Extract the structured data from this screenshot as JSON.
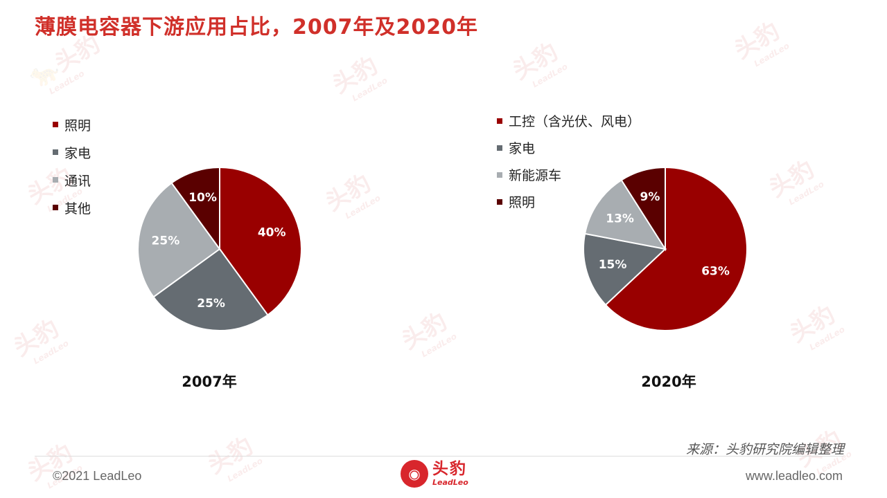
{
  "title": "薄膜电容器下游应用占比，2007年及2020年",
  "watermark": {
    "cn": "头豹",
    "en": "LeadLeo"
  },
  "chart_data": [
    {
      "type": "pie",
      "caption": "2007年",
      "categories": [
        "照明",
        "家电",
        "通讯",
        "其他"
      ],
      "values": [
        40,
        25,
        25,
        10
      ],
      "labels": [
        "40%",
        "25%",
        "25%",
        "10%"
      ],
      "colors": [
        "#990000",
        "#656c72",
        "#a8adb1",
        "#5a0000"
      ],
      "legend_position": "left"
    },
    {
      "type": "pie",
      "caption": "2020年",
      "categories": [
        "工控（含光伏、风电）",
        "家电",
        "新能源车",
        "照明"
      ],
      "values": [
        63,
        15,
        13,
        9
      ],
      "labels": [
        "63%",
        "15%",
        "13%",
        "9%"
      ],
      "colors": [
        "#990000",
        "#656c72",
        "#a8adb1",
        "#5a0000"
      ],
      "legend_position": "top-left"
    }
  ],
  "footer": {
    "source": "来源：头豹研究院编辑整理",
    "copyright": "©2021 LeadLeo",
    "website": "www.leadleo.com",
    "logo_cn": "头豹",
    "logo_en": "LeadLeo"
  }
}
